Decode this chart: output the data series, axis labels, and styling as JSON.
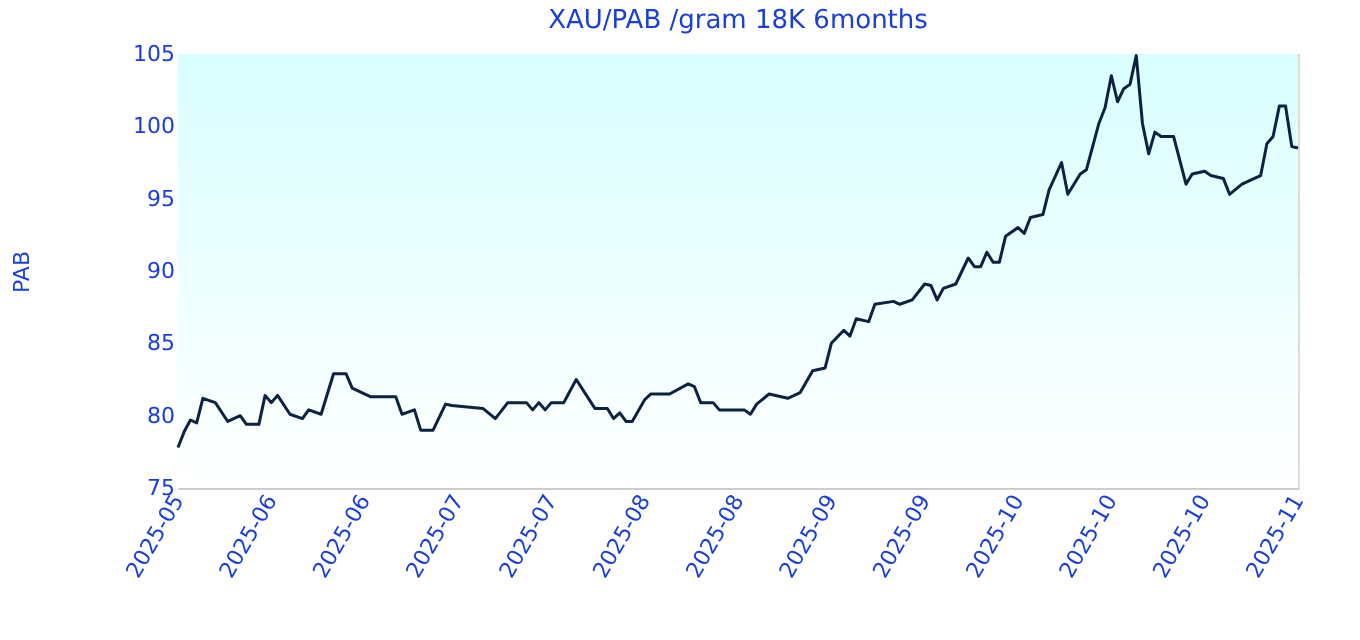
{
  "chart_data": {
    "type": "line",
    "title": "XAU/PAB /gram 18K 6months",
    "ylabel": "PAB",
    "x": [
      "2025-05-05",
      "2025-05-06",
      "2025-05-07",
      "2025-05-08",
      "2025-05-09",
      "2025-05-11",
      "2025-05-13",
      "2025-05-15",
      "2025-05-16",
      "2025-05-18",
      "2025-05-19",
      "2025-05-20",
      "2025-05-21",
      "2025-05-23",
      "2025-05-25",
      "2025-05-26",
      "2025-05-28",
      "2025-05-30",
      "2025-06-01",
      "2025-06-02",
      "2025-06-05",
      "2025-06-09",
      "2025-06-10",
      "2025-06-12",
      "2025-06-13",
      "2025-06-15",
      "2025-06-17",
      "2025-06-18",
      "2025-06-23",
      "2025-06-25",
      "2025-06-27",
      "2025-06-30",
      "2025-07-01",
      "2025-07-02",
      "2025-07-03",
      "2025-07-04",
      "2025-07-06",
      "2025-07-08",
      "2025-07-11",
      "2025-07-13",
      "2025-07-14",
      "2025-07-15",
      "2025-07-16",
      "2025-07-17",
      "2025-07-19",
      "2025-07-20",
      "2025-07-23",
      "2025-07-26",
      "2025-07-27",
      "2025-07-28",
      "2025-07-30",
      "2025-07-31",
      "2025-08-04",
      "2025-08-05",
      "2025-08-06",
      "2025-08-08",
      "2025-08-11",
      "2025-08-13",
      "2025-08-15",
      "2025-08-17",
      "2025-08-18",
      "2025-08-20",
      "2025-08-21",
      "2025-08-22",
      "2025-08-24",
      "2025-08-25",
      "2025-08-28",
      "2025-08-29",
      "2025-08-31",
      "2025-09-02",
      "2025-09-03",
      "2025-09-04",
      "2025-09-05",
      "2025-09-07",
      "2025-09-09",
      "2025-09-10",
      "2025-09-11",
      "2025-09-12",
      "2025-09-13",
      "2025-09-14",
      "2025-09-15",
      "2025-09-17",
      "2025-09-18",
      "2025-09-19",
      "2025-09-21",
      "2025-09-22",
      "2025-09-24",
      "2025-09-25",
      "2025-09-27",
      "2025-09-28",
      "2025-09-30",
      "2025-10-01",
      "2025-10-02",
      "2025-10-03",
      "2025-10-04",
      "2025-10-05",
      "2025-10-06",
      "2025-10-07",
      "2025-10-08",
      "2025-10-09",
      "2025-10-10",
      "2025-10-12",
      "2025-10-14",
      "2025-10-15",
      "2025-10-17",
      "2025-10-18",
      "2025-10-20",
      "2025-10-21",
      "2025-10-23",
      "2025-10-25",
      "2025-10-26",
      "2025-10-27",
      "2025-10-28",
      "2025-10-29",
      "2025-10-30",
      "2025-10-31",
      "2025-11-01"
    ],
    "series": [
      {
        "color": "#0d2240",
        "values": [
          77.8,
          78.9,
          79.7,
          79.5,
          81.2,
          80.9,
          79.6,
          80.0,
          79.4,
          79.4,
          81.4,
          80.9,
          81.4,
          80.1,
          79.8,
          80.4,
          80.1,
          82.9,
          82.9,
          81.9,
          81.3,
          81.3,
          80.1,
          80.4,
          79.0,
          79.0,
          80.8,
          80.7,
          80.5,
          79.8,
          80.9,
          80.9,
          80.4,
          80.9,
          80.4,
          80.9,
          80.9,
          82.5,
          80.5,
          80.5,
          79.8,
          80.2,
          79.6,
          79.6,
          81.1,
          81.5,
          81.5,
          82.2,
          82.0,
          80.9,
          80.9,
          80.4,
          80.4,
          80.1,
          80.8,
          81.5,
          81.2,
          81.6,
          83.1,
          83.3,
          85.0,
          85.9,
          85.5,
          86.7,
          86.5,
          87.7,
          87.9,
          87.7,
          88.0,
          89.1,
          89.0,
          88.0,
          88.8,
          89.1,
          90.9,
          90.3,
          90.3,
          91.3,
          90.6,
          90.6,
          92.4,
          93.0,
          92.6,
          93.7,
          93.9,
          95.6,
          97.5,
          95.3,
          96.7,
          97.0,
          100.2,
          101.3,
          103.5,
          101.7,
          102.6,
          102.9,
          104.9,
          100.2,
          98.1,
          99.6,
          99.3,
          99.3,
          96.0,
          96.7,
          96.9,
          96.6,
          96.4,
          95.3,
          96.0,
          96.4,
          96.6,
          98.8,
          99.3,
          101.4,
          101.4,
          98.6,
          98.5
        ]
      }
    ],
    "xlim": [
      "2025-05-05",
      "2025-11-01"
    ],
    "xticks": [
      {
        "value": "2025-05-05",
        "label": "2025-05"
      },
      {
        "value": "2025-05-20",
        "label": "2025-06"
      },
      {
        "value": "2025-06-04",
        "label": "2025-06"
      },
      {
        "value": "2025-06-19",
        "label": "2025-07"
      },
      {
        "value": "2025-07-04",
        "label": "2025-07"
      },
      {
        "value": "2025-07-19",
        "label": "2025-08"
      },
      {
        "value": "2025-08-03",
        "label": "2025-08"
      },
      {
        "value": "2025-08-18",
        "label": "2025-09"
      },
      {
        "value": "2025-09-02",
        "label": "2025-09"
      },
      {
        "value": "2025-09-17",
        "label": "2025-10"
      },
      {
        "value": "2025-10-02",
        "label": "2025-10"
      },
      {
        "value": "2025-10-17",
        "label": "2025-10"
      },
      {
        "value": "2025-11-01",
        "label": "2025-11"
      }
    ],
    "ylim": [
      75,
      105
    ],
    "yticks": [
      75,
      80,
      85,
      90,
      95,
      100,
      105
    ],
    "grid": "y",
    "legend": false,
    "line_style": "solid"
  }
}
